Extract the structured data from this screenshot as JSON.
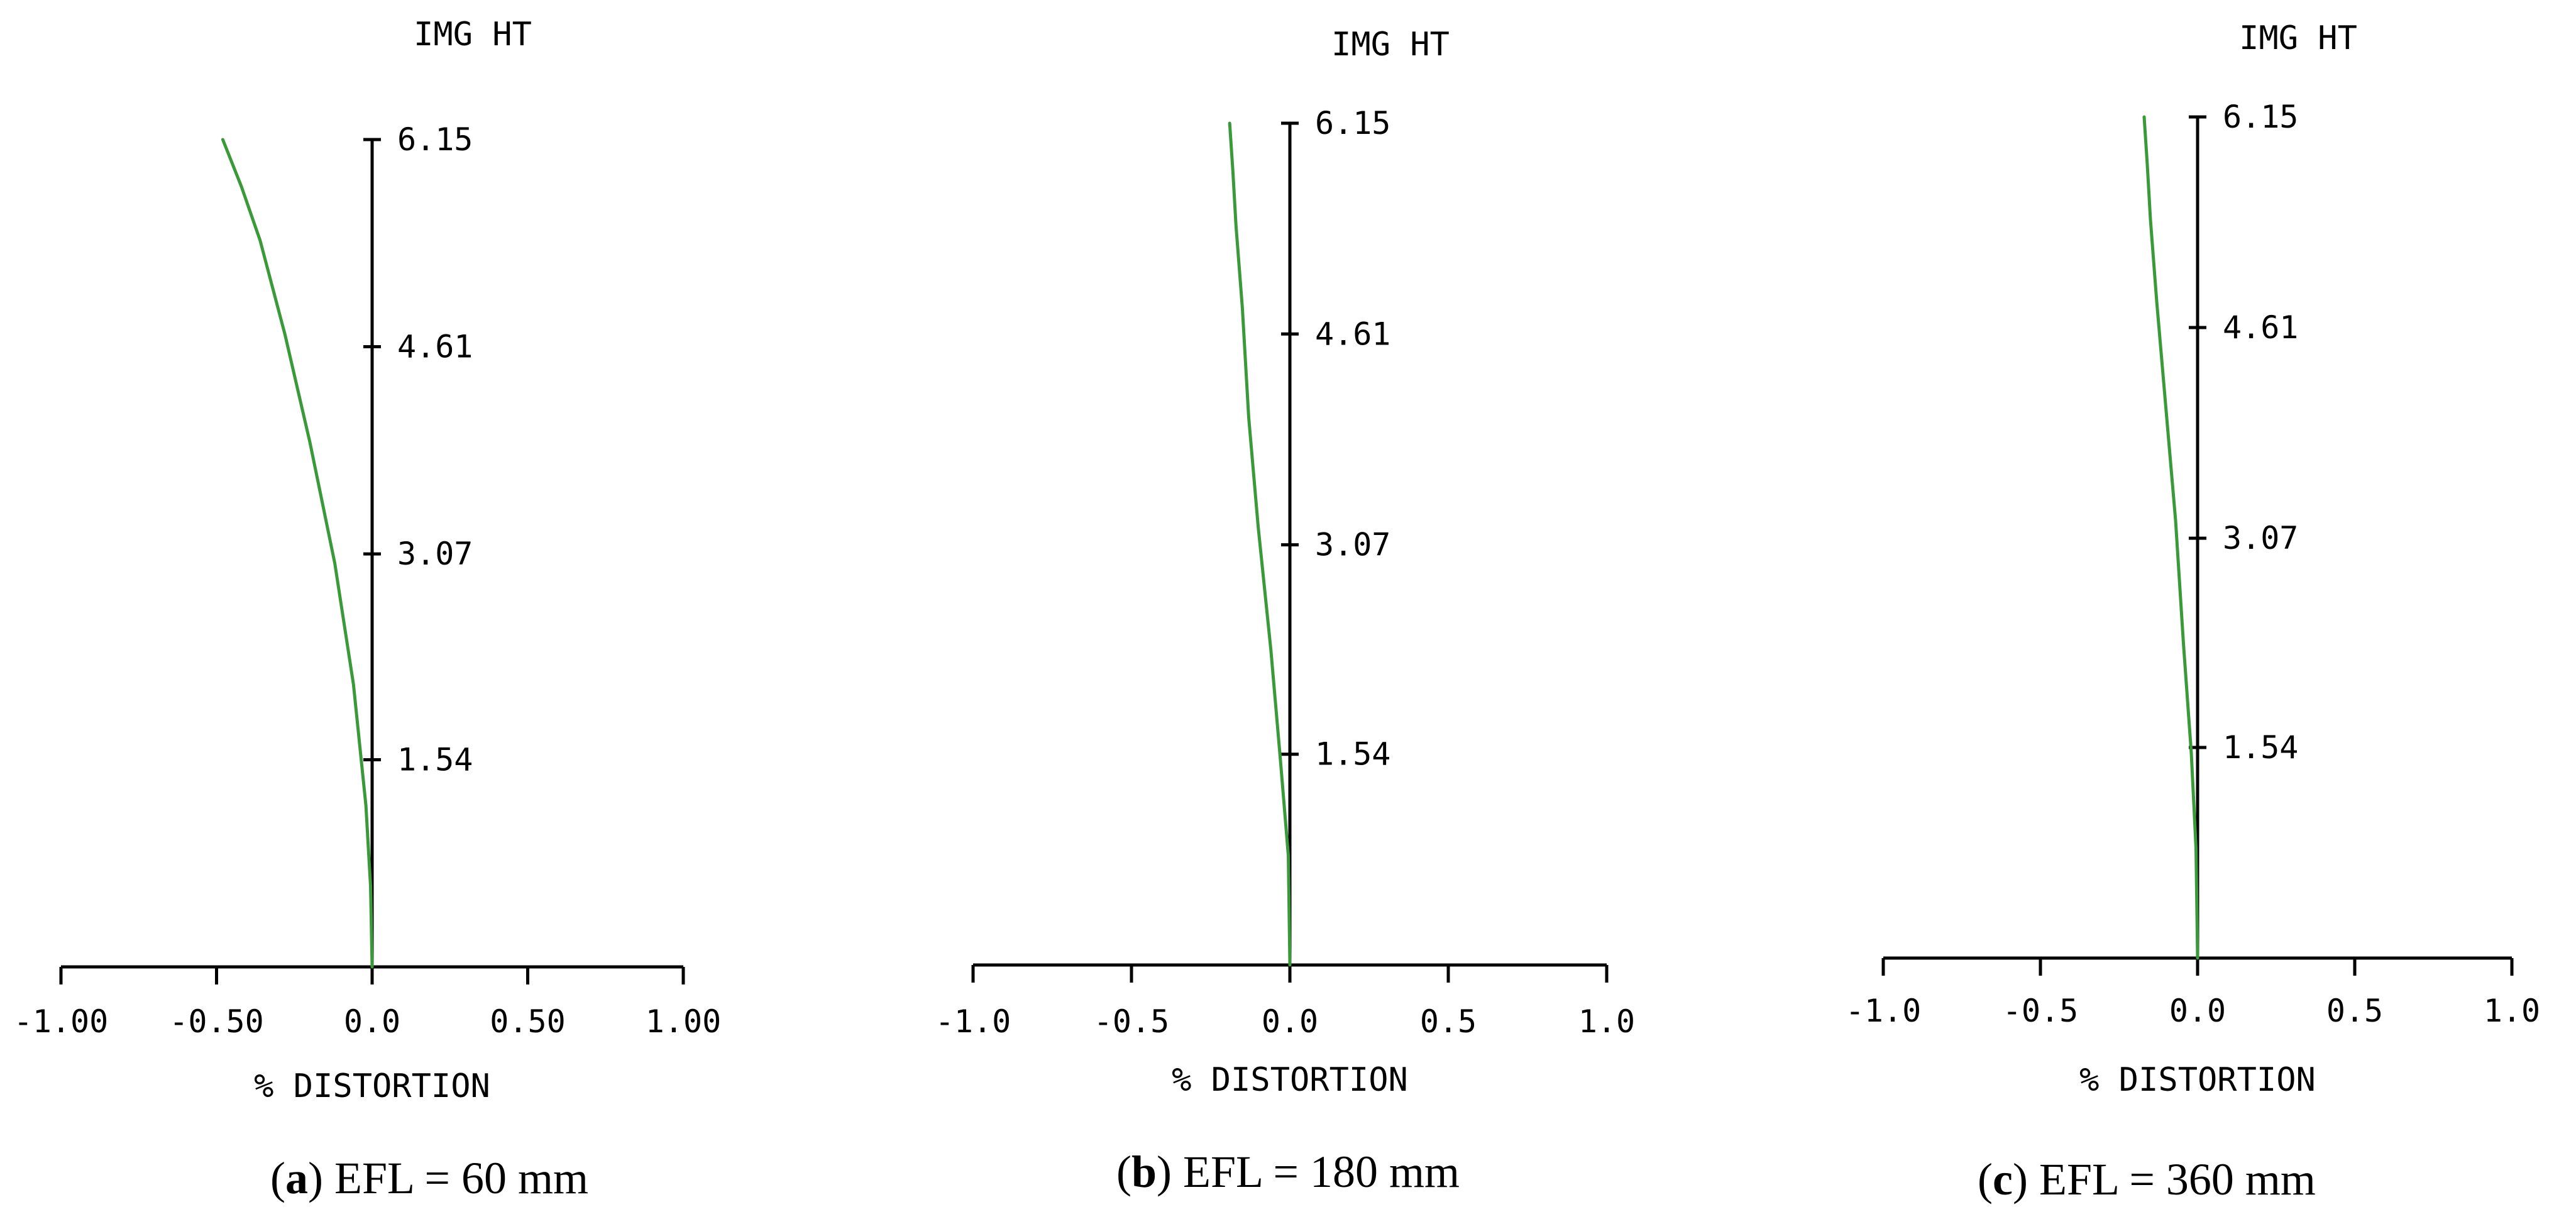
{
  "chart_data": [
    {
      "type": "line",
      "panel_letter": "a",
      "caption": "EFL = 60 mm",
      "title": "IMG HT",
      "xlabel": "% DISTORTION",
      "ylabel": "IMG HT",
      "xlim": [
        -1.0,
        1.0
      ],
      "ylim": [
        0,
        6.15
      ],
      "x_ticks": [
        -1.0,
        -0.5,
        0.0,
        0.5,
        1.0
      ],
      "x_tick_labels": [
        "-1.00",
        "-0.50",
        "0.0",
        "0.50",
        "1.00"
      ],
      "y_ticks": [
        1.54,
        3.07,
        4.61,
        6.15
      ],
      "y_tick_labels": [
        "1.54",
        "3.07",
        "4.61",
        "6.15"
      ],
      "grid": false,
      "series": [
        {
          "color": "#3a9a3a",
          "x": [
            0.0,
            -0.005,
            -0.02,
            -0.06,
            -0.12,
            -0.2,
            -0.28,
            -0.36,
            -0.42,
            -0.48
          ],
          "y": [
            0.0,
            0.6,
            1.2,
            2.1,
            3.0,
            3.9,
            4.7,
            5.4,
            5.8,
            6.15
          ]
        }
      ]
    },
    {
      "type": "line",
      "panel_letter": "b",
      "caption": "EFL = 180 mm",
      "title": "IMG HT",
      "xlabel": "% DISTORTION",
      "ylabel": "IMG HT",
      "xlim": [
        -1.0,
        1.0
      ],
      "ylim": [
        0,
        6.15
      ],
      "x_ticks": [
        -1.0,
        -0.5,
        0.0,
        0.5,
        1.0
      ],
      "x_tick_labels": [
        "-1.0",
        "-0.5",
        "0.0",
        "0.5",
        "1.0"
      ],
      "y_ticks": [
        1.54,
        3.07,
        4.61,
        6.15
      ],
      "y_tick_labels": [
        "1.54",
        "3.07",
        "4.61",
        "6.15"
      ],
      "grid": false,
      "series": [
        {
          "color": "#3a9a3a",
          "x": [
            0.0,
            -0.005,
            -0.03,
            -0.06,
            -0.1,
            -0.13,
            -0.15,
            -0.17,
            -0.18,
            -0.19
          ],
          "y": [
            0.0,
            0.8,
            1.5,
            2.3,
            3.2,
            4.0,
            4.8,
            5.4,
            5.8,
            6.15
          ]
        }
      ]
    },
    {
      "type": "line",
      "panel_letter": "c",
      "caption": "EFL = 360 mm",
      "title": "IMG HT",
      "xlabel": "% DISTORTION",
      "ylabel": "IMG HT",
      "xlim": [
        -1.0,
        1.0
      ],
      "ylim": [
        0,
        6.15
      ],
      "x_ticks": [
        -1.0,
        -0.5,
        0.0,
        0.5,
        1.0
      ],
      "x_tick_labels": [
        "-1.0",
        "-0.5",
        "0.0",
        "0.5",
        "1.0"
      ],
      "y_ticks": [
        1.54,
        3.07,
        4.61,
        6.15
      ],
      "y_tick_labels": [
        "1.54",
        "3.07",
        "4.61",
        "6.15"
      ],
      "grid": false,
      "series": [
        {
          "color": "#3a9a3a",
          "x": [
            0.0,
            -0.005,
            -0.02,
            -0.045,
            -0.07,
            -0.1,
            -0.13,
            -0.15,
            -0.16,
            -0.17
          ],
          "y": [
            0.0,
            0.8,
            1.5,
            2.3,
            3.2,
            4.0,
            4.8,
            5.4,
            5.8,
            6.15
          ]
        }
      ]
    }
  ]
}
